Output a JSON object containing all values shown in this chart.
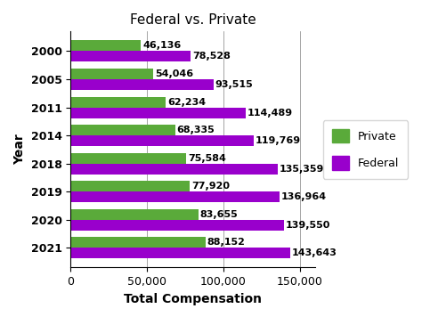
{
  "title": "Federal vs. Private",
  "xlabel": "Total Compensation",
  "ylabel": "Year",
  "years": [
    "2000",
    "2005",
    "2011",
    "2014",
    "2018",
    "2019",
    "2020",
    "2021"
  ],
  "private_values": [
    46136,
    54046,
    62234,
    68335,
    75584,
    77920,
    83655,
    88152
  ],
  "federal_values": [
    78528,
    93515,
    114489,
    119769,
    135359,
    136964,
    139550,
    143643
  ],
  "private_color": "#5aaa3a",
  "federal_color": "#9900cc",
  "bar_height": 0.38,
  "xlim": [
    0,
    160000
  ],
  "xticks": [
    0,
    50000,
    100000,
    150000
  ],
  "xtick_labels": [
    "0",
    "50,000",
    "100,000",
    "150,000"
  ],
  "legend_private": "Private",
  "legend_federal": "Federal",
  "title_fontsize": 11,
  "label_fontsize": 10,
  "tick_fontsize": 9,
  "annotation_fontsize": 8
}
